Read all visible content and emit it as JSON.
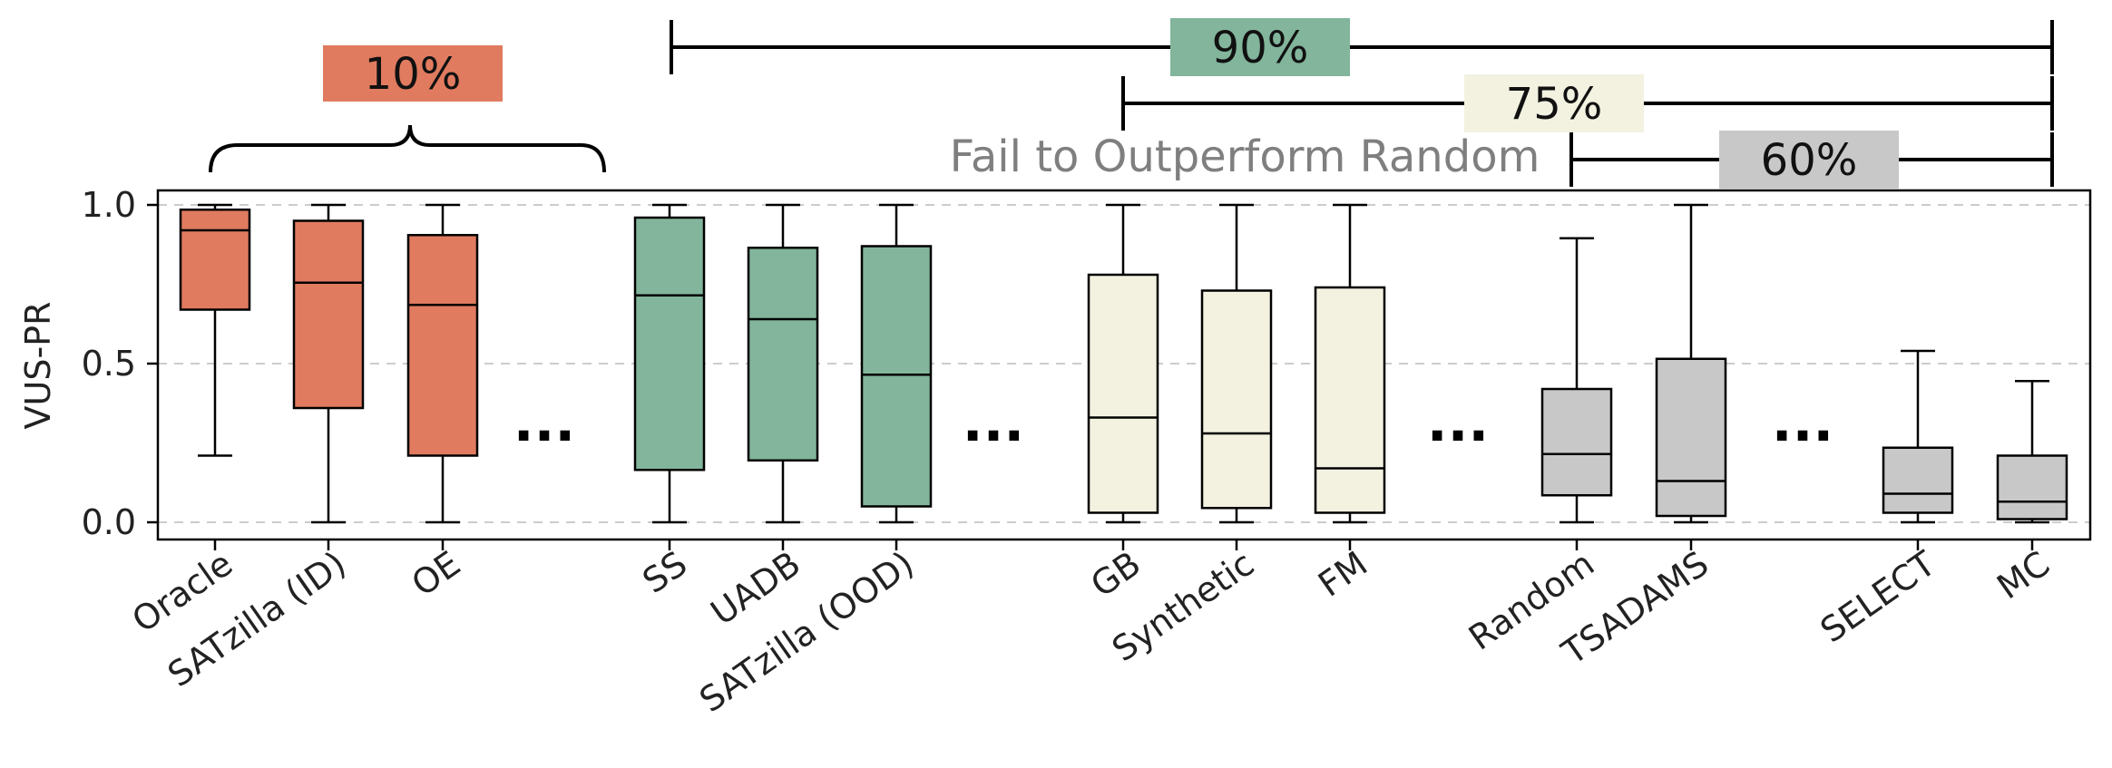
{
  "chart_data": {
    "type": "box",
    "ylabel": "VUS-PR",
    "ylim": [
      -0.05,
      1.05
    ],
    "yticks": [
      0.0,
      0.5,
      1.0
    ],
    "ytick_labels": [
      "0.0",
      "0.5",
      "1.0"
    ],
    "grid": {
      "y": true,
      "style": "dashed"
    },
    "groups": [
      {
        "name": "10%",
        "color": "#e07b5f"
      },
      {
        "name": "90%",
        "color": "#82b59b"
      },
      {
        "name": "75%",
        "color": "#f3f1e0"
      },
      {
        "name": "60%",
        "color": "#c8c8c8"
      }
    ],
    "boxes": [
      {
        "label": "Oracle",
        "group": 0,
        "whisker_low": 0.21,
        "q1": 0.67,
        "median": 0.92,
        "q3": 0.985,
        "whisker_high": 1.0
      },
      {
        "label": "SATzilla (ID)",
        "group": 0,
        "whisker_low": 0.0,
        "q1": 0.36,
        "median": 0.755,
        "q3": 0.95,
        "whisker_high": 1.0
      },
      {
        "label": "OE",
        "group": 0,
        "whisker_low": 0.0,
        "q1": 0.21,
        "median": 0.685,
        "q3": 0.905,
        "whisker_high": 1.0
      },
      {
        "label": "SS",
        "group": 1,
        "whisker_low": 0.0,
        "q1": 0.165,
        "median": 0.715,
        "q3": 0.96,
        "whisker_high": 1.0
      },
      {
        "label": "UADB",
        "group": 1,
        "whisker_low": 0.0,
        "q1": 0.195,
        "median": 0.64,
        "q3": 0.865,
        "whisker_high": 1.0
      },
      {
        "label": "SATzilla (OOD)",
        "group": 1,
        "whisker_low": 0.0,
        "q1": 0.05,
        "median": 0.465,
        "q3": 0.87,
        "whisker_high": 1.0
      },
      {
        "label": "GB",
        "group": 2,
        "whisker_low": 0.0,
        "q1": 0.03,
        "median": 0.33,
        "q3": 0.78,
        "whisker_high": 1.0
      },
      {
        "label": "Synthetic",
        "group": 2,
        "whisker_low": 0.0,
        "q1": 0.045,
        "median": 0.28,
        "q3": 0.73,
        "whisker_high": 1.0
      },
      {
        "label": "FM",
        "group": 2,
        "whisker_low": 0.0,
        "q1": 0.03,
        "median": 0.17,
        "q3": 0.74,
        "whisker_high": 1.0
      },
      {
        "label": "Random",
        "group": 3,
        "whisker_low": 0.0,
        "q1": 0.085,
        "median": 0.215,
        "q3": 0.42,
        "whisker_high": 0.895
      },
      {
        "label": "TSADAMS",
        "group": 3,
        "whisker_low": 0.0,
        "q1": 0.02,
        "median": 0.13,
        "q3": 0.515,
        "whisker_high": 1.0
      },
      {
        "label": "SELECT",
        "group": 3,
        "whisker_low": 0.0,
        "q1": 0.03,
        "median": 0.09,
        "q3": 0.235,
        "whisker_high": 0.54
      },
      {
        "label": "MC",
        "group": 3,
        "whisker_low": 0.0,
        "q1": 0.01,
        "median": 0.065,
        "q3": 0.21,
        "whisker_high": 0.445
      }
    ],
    "ellipsis_text": "...",
    "annotations": {
      "brace_label": "10%",
      "range_labels": [
        "90%",
        "75%",
        "60%"
      ],
      "fail_text": "Fail to Outperform Random"
    }
  }
}
